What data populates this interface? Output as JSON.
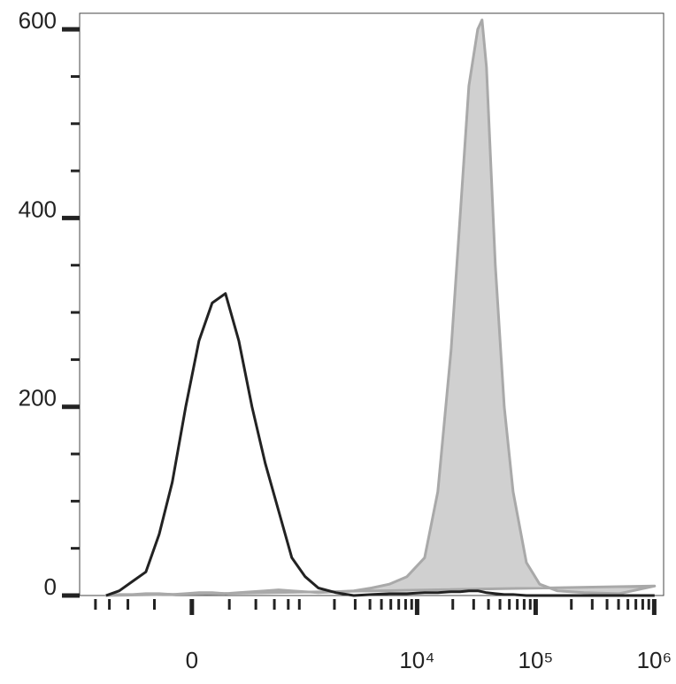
{
  "chart_data": {
    "type": "histogram-overlay",
    "xscale": "biexponential",
    "x": [
      -643,
      -485,
      -359,
      -256,
      -171,
      -98,
      -30,
      35,
      102,
      176,
      263,
      366,
      494,
      655,
      860,
      1123,
      1460,
      2066,
      2918,
      4120,
      5814,
      8203,
      11567,
      14956,
      19354,
      22995,
      27317,
      32458,
      35330,
      38480,
      45713,
      54331,
      64537,
      83538,
      107982,
      152208,
      255024,
      507024,
      1007500
    ],
    "series": [
      {
        "color": "#222222",
        "fill": "none",
        "values": [
          0,
          5,
          15,
          25,
          65,
          120,
          200,
          270,
          310,
          320,
          270,
          200,
          140,
          90,
          40,
          20,
          8,
          3,
          0,
          1,
          2,
          2,
          3,
          3,
          4,
          4,
          5,
          5,
          4,
          3,
          2,
          1,
          1,
          0,
          0,
          0,
          0,
          0,
          0
        ]
      },
      {
        "color": "#a9a9a9",
        "fill": "#d0d0d0",
        "values": [
          0,
          1,
          1,
          2,
          2,
          1,
          2,
          3,
          3,
          2,
          3,
          4,
          5,
          6,
          5,
          4,
          3,
          4,
          5,
          8,
          12,
          20,
          40,
          110,
          260,
          400,
          540,
          600,
          610,
          560,
          350,
          200,
          110,
          35,
          12,
          5,
          3,
          2,
          10
        ]
      }
    ],
    "xlim": [
      -1100,
      1200000
    ],
    "ylim": [
      0,
      617
    ],
    "yticks": [
      0,
      200,
      400,
      600
    ],
    "yminorticks": [
      50,
      100,
      150,
      250,
      300,
      350,
      450,
      500,
      550
    ],
    "xticks": [
      0,
      {
        "value": 10000,
        "label": "10⁴"
      },
      {
        "value": 100000,
        "label": "10⁵"
      },
      {
        "value": 1000000,
        "label": "10⁶"
      }
    ],
    "xminorticks": [
      -800,
      -600,
      -400,
      -200,
      200,
      400,
      600,
      800,
      1000,
      2000,
      3000,
      4000,
      5000,
      6000,
      7000,
      8000,
      9000,
      20000,
      30000,
      40000,
      50000,
      60000,
      70000,
      80000,
      90000,
      200000,
      300000,
      400000,
      500000,
      600000,
      700000,
      800000,
      900000
    ]
  }
}
